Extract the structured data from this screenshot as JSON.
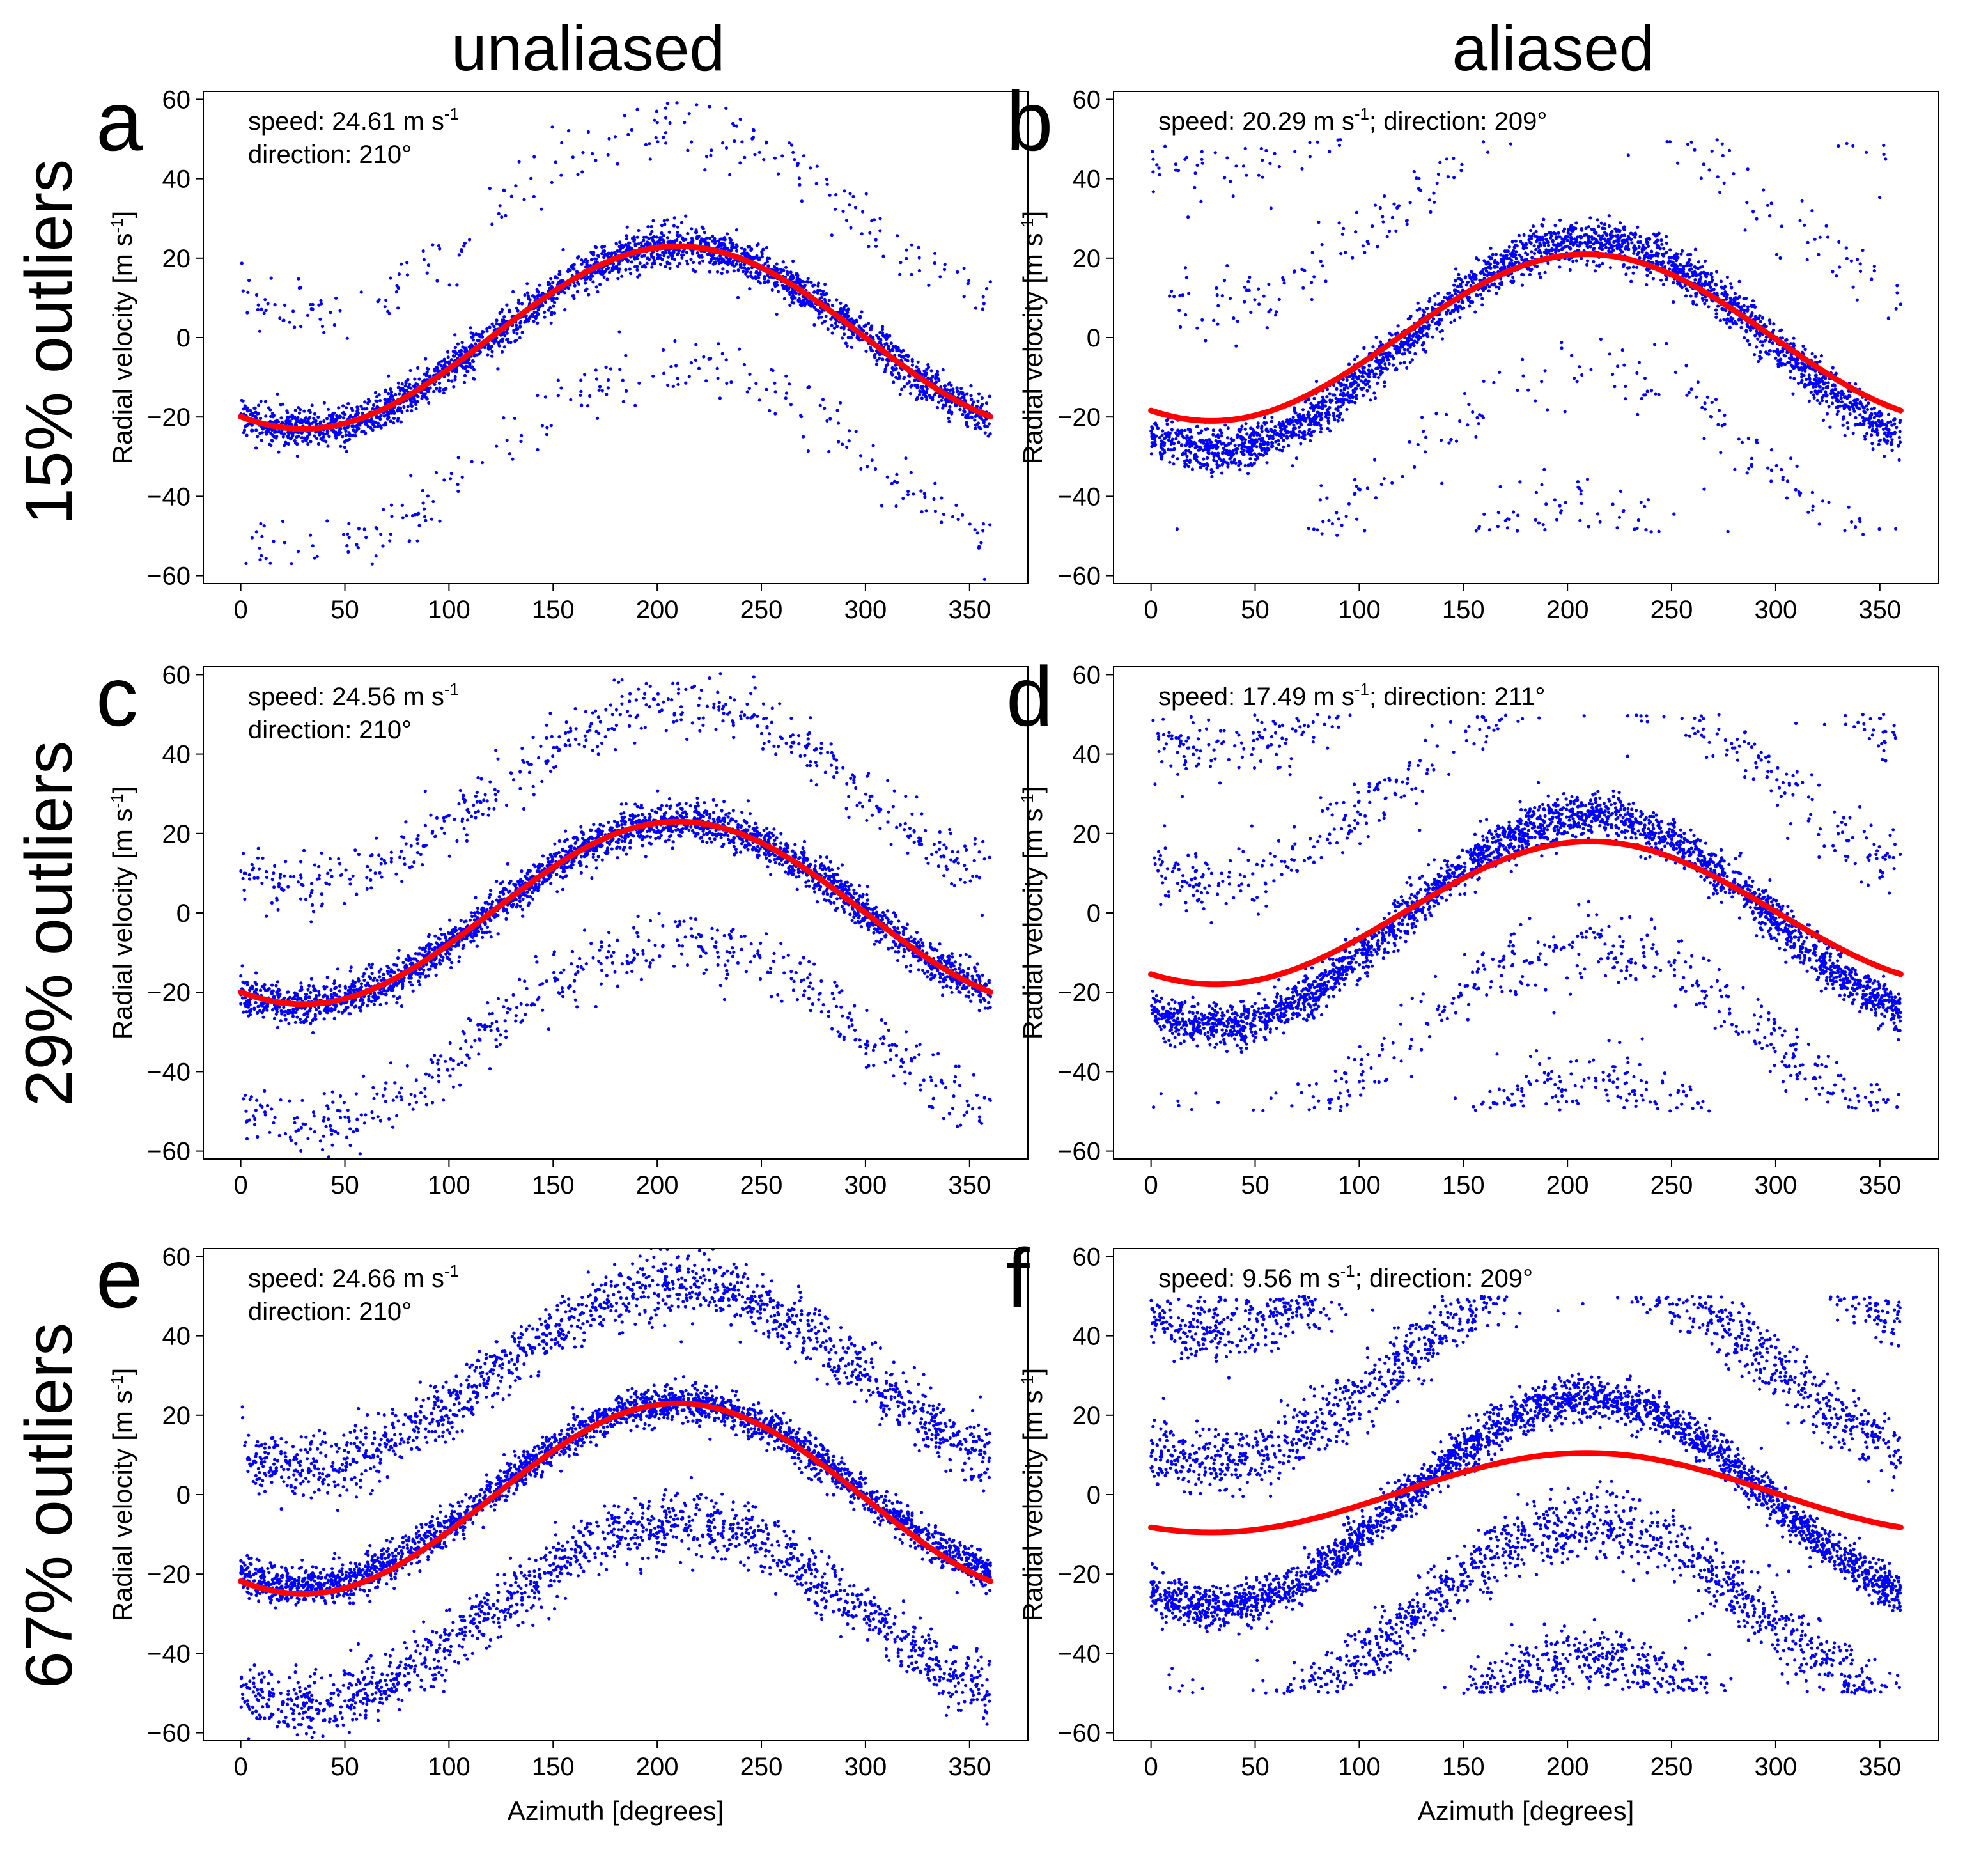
{
  "figure": {
    "column_titles": [
      "unaliased",
      "aliased"
    ],
    "row_titles": [
      "15% outliers",
      "29% outliers",
      "67% outliers"
    ],
    "colors": {
      "points": "#0000ff",
      "fit": "#ff0000",
      "axes": "#000000",
      "background": "#ffffff"
    },
    "common": {
      "xlabel": "Azimuth [degrees]",
      "ylabel_main": "Radial velocity [m s",
      "ylabel_sup": "-1",
      "ylabel_close": "]",
      "xticks": [
        "0",
        "50",
        "100",
        "150",
        "200",
        "250",
        "300",
        "350"
      ],
      "yticks": [
        "−60",
        "−40",
        "−20",
        "0",
        "20",
        "40",
        "60"
      ],
      "xlim": [
        -18,
        378
      ],
      "ylim": [
        -62,
        62
      ]
    }
  },
  "chart_data": [
    {
      "type": "scatter",
      "panel": "a",
      "column": "unaliased",
      "row": "15% outliers",
      "annotation": {
        "line1": "speed: 24.61 m s",
        "line1_sup": "-1",
        "line1_tail": "",
        "line2": "direction: 210°"
      },
      "fit": {
        "speed": 24.61,
        "direction": 210,
        "amplitude": 23,
        "offset": 0
      },
      "aliased": false,
      "outlier_fraction": 0.15,
      "series": [
        {
          "name": "observations",
          "style": "points",
          "description": "sinusoid + noise with outliers at ±30 m/s"
        },
        {
          "name": "fit",
          "style": "line"
        }
      ]
    },
    {
      "type": "scatter",
      "panel": "b",
      "column": "aliased",
      "row": "15% outliers",
      "annotation": {
        "line1": "speed: 20.29 m s",
        "line1_sup": "-1",
        "line1_tail": "; direction: 209°",
        "line2": ""
      },
      "fit": {
        "speed": 20.29,
        "direction": 209,
        "amplitude": 21,
        "offset": 0
      },
      "aliased": true,
      "outlier_fraction": 0.15,
      "series": [
        {
          "name": "observations",
          "style": "points",
          "description": "aliased to [-50, 50] m/s"
        },
        {
          "name": "fit",
          "style": "line"
        }
      ]
    },
    {
      "type": "scatter",
      "panel": "c",
      "column": "unaliased",
      "row": "29% outliers",
      "annotation": {
        "line1": "speed: 24.56 m s",
        "line1_sup": "-1",
        "line1_tail": "",
        "line2": "direction: 210°"
      },
      "fit": {
        "speed": 24.56,
        "direction": 210,
        "amplitude": 23,
        "offset": 0
      },
      "aliased": false,
      "outlier_fraction": 0.29,
      "series": [
        {
          "name": "observations",
          "style": "points"
        },
        {
          "name": "fit",
          "style": "line"
        }
      ]
    },
    {
      "type": "scatter",
      "panel": "d",
      "column": "aliased",
      "row": "29% outliers",
      "annotation": {
        "line1": "speed: 17.49 m s",
        "line1_sup": "-1",
        "line1_tail": "; direction: 211°",
        "line2": ""
      },
      "fit": {
        "speed": 17.49,
        "direction": 211,
        "amplitude": 18,
        "offset": 0
      },
      "aliased": true,
      "outlier_fraction": 0.29,
      "series": [
        {
          "name": "observations",
          "style": "points"
        },
        {
          "name": "fit",
          "style": "line"
        }
      ]
    },
    {
      "type": "scatter",
      "panel": "e",
      "column": "unaliased",
      "row": "67% outliers",
      "annotation": {
        "line1": "speed: 24.66 m s",
        "line1_sup": "-1",
        "line1_tail": "",
        "line2": "direction: 210°"
      },
      "fit": {
        "speed": 24.66,
        "direction": 210,
        "amplitude": 24,
        "offset": -1
      },
      "aliased": false,
      "outlier_fraction": 0.67,
      "series": [
        {
          "name": "observations",
          "style": "points"
        },
        {
          "name": "fit",
          "style": "line"
        }
      ]
    },
    {
      "type": "scatter",
      "panel": "f",
      "column": "aliased",
      "row": "67% outliers",
      "annotation": {
        "line1": "speed: 9.56 m s",
        "line1_sup": "-1",
        "line1_tail": "; direction: 209°",
        "line2": ""
      },
      "fit": {
        "speed": 9.56,
        "direction": 209,
        "amplitude": 10,
        "offset": 0.5
      },
      "aliased": true,
      "outlier_fraction": 0.67,
      "series": [
        {
          "name": "observations",
          "style": "points"
        },
        {
          "name": "fit",
          "style": "line"
        }
      ]
    }
  ]
}
